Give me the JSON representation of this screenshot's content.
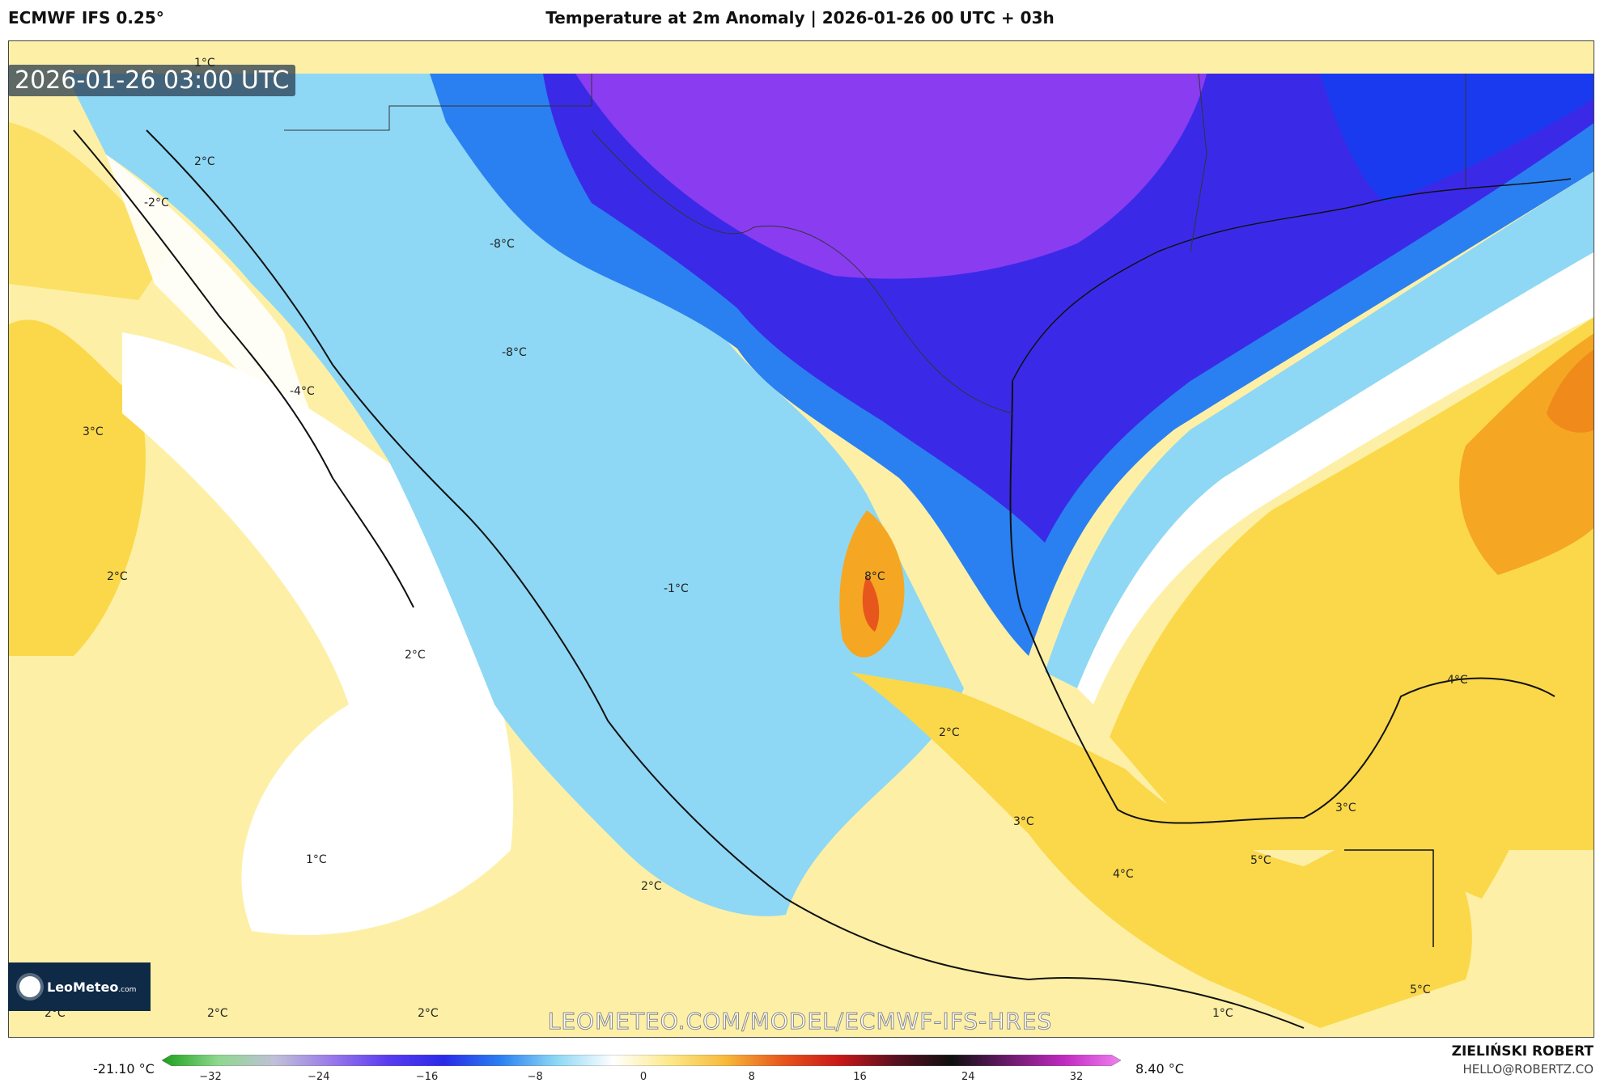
{
  "header": {
    "model": "ECMWF IFS 0.25°",
    "title": "Temperature at 2m Anomaly | 2026-01-26 00 UTC + 03h"
  },
  "map": {
    "timestamp": "2026-01-26 03:00 UTC",
    "watermark": "LEOMETEO.COM/MODEL/ECMWF-IFS-HRES",
    "logo": {
      "name": "LeoMeteo",
      "suffix": ".com"
    },
    "labels": [
      "1°C",
      "2°C",
      "-2°C",
      "-8°C",
      "-8°C",
      "-4°C",
      "3°C",
      "2°C",
      "2°C",
      "-1°C",
      "8°C",
      "2°C",
      "4°C",
      "3°C",
      "3°C",
      "4°C",
      "5°C",
      "1°C",
      "2°C",
      "5°C",
      "2°C",
      "2°C",
      "2°C",
      "1°C"
    ],
    "colors": {
      "warm": "#fdf0a6",
      "warmer": "#fbd84a",
      "hot": "#f5a623",
      "cold": "#7fd3f5",
      "colder": "#2a6af0",
      "coldest": "#3a2ae8",
      "purple": "#8a3cf0",
      "land_line": "#111111"
    }
  },
  "legend": {
    "min_label": "-21.10 °C",
    "max_label": "8.40 °C",
    "ticks": [
      "−32",
      "−24",
      "−16",
      "−8",
      "0",
      "8",
      "16",
      "24",
      "32"
    ],
    "stops": [
      "#1aa01a",
      "#8fd88f",
      "#c0c0d8",
      "#9a7ae8",
      "#5a3cf0",
      "#2a2ae8",
      "#2a80f0",
      "#8ed8f5",
      "#ffffff",
      "#fde98a",
      "#f6b93a",
      "#e7561c",
      "#c81818",
      "#5a1020",
      "#101010",
      "#6a1a6a",
      "#c02ac0",
      "#f080f0"
    ]
  },
  "credits": {
    "author": "ZIELIŃSKI ROBERT",
    "email": "HELLO@ROBERTZ.CO"
  }
}
